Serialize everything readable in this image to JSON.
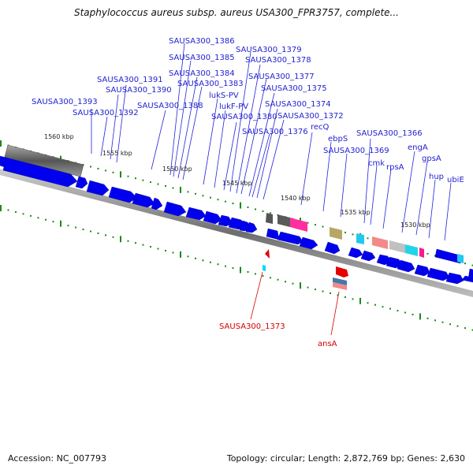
{
  "title": "Staphylococcus aureus subsp. aureus USA300_FPR3757, complete...",
  "footer": {
    "accession": "Accession: NC_007793",
    "topology": "Topology: circular; Length: 2,872,769 bp; Genes: 2,630"
  },
  "colors": {
    "gene_blue": "#0000ee",
    "label_blue": "#1f1fcf",
    "label_red": "#d40000",
    "tick_green": "#1a8a1a",
    "backbone": "#777777"
  },
  "kbp_ticks": [
    "1560 kbp",
    "1555 kbp",
    "1550 kbp",
    "1545 kbp",
    "1540 kbp",
    "1535 kbp",
    "1530 kbp"
  ],
  "gene_labels_top": [
    "SAUSA300_1386",
    "SAUSA300_1385",
    "SAUSA300_1379",
    "SAUSA300_1378",
    "SAUSA300_1384",
    "SAUSA300_1383",
    "SAUSA300_1391",
    "SAUSA300_1390",
    "SAUSA300_1377",
    "SAUSA300_1375",
    "lukS-PV",
    "lukF-PV",
    "SAUSA300_1393",
    "SAUSA300_1388",
    "SAUSA300_1374",
    "SAUSA300_1392",
    "SAUSA300_1380",
    "SAUSA300_1372",
    "SAUSA300_1376",
    "recQ",
    "SAUSA300_1366",
    "ebpS",
    "SAUSA300_1369",
    "engA",
    "gpsA",
    "cmk",
    "rpsA",
    "hup",
    "ubiE"
  ],
  "gene_labels_bottom": [
    "SAUSA300_1373",
    "ansA"
  ]
}
